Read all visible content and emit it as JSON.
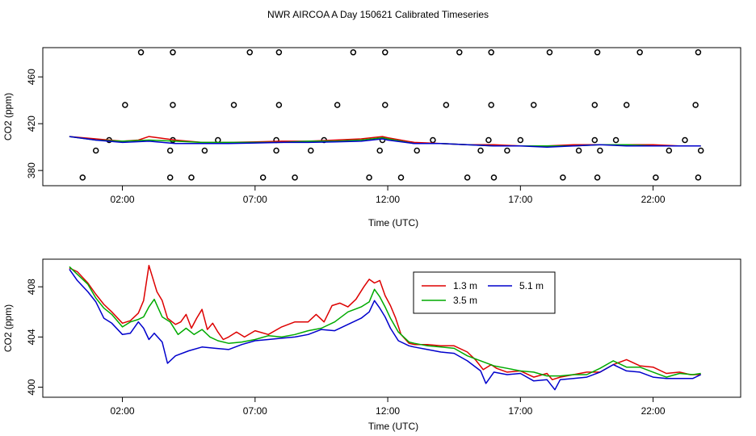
{
  "title": "NWR AIRCOA A  Day 150621  Calibrated Timeseries",
  "chart_data": [
    {
      "type": "scatter",
      "xlabel": "Time (UTC)",
      "ylabel": "CO2 (ppm)",
      "xlim": [
        -1.0,
        25.3
      ],
      "ylim": [
        367,
        485
      ],
      "x_ticks": [
        2,
        7,
        12,
        17,
        22
      ],
      "x_tick_labels": [
        "02:00",
        "07:00",
        "12:00",
        "17:00",
        "22:00"
      ],
      "y_ticks": [
        380,
        420,
        460
      ],
      "y_tick_labels": [
        "380",
        "420",
        "460"
      ],
      "lines": [
        {
          "name": "1.3 m",
          "color": "#dd0000",
          "x": [
            0,
            1,
            2,
            2.6,
            3,
            4,
            5,
            6,
            7,
            8,
            9,
            10,
            11,
            11.8,
            12,
            13,
            14,
            15,
            16,
            17,
            18,
            19,
            20,
            21,
            22,
            23,
            23.8
          ],
          "y": [
            409,
            407,
            405,
            406,
            409,
            406,
            404,
            404,
            404.5,
            405,
            405,
            406,
            407,
            409,
            408,
            404,
            403,
            402,
            402,
            401,
            401,
            402,
            402,
            402,
            402,
            401,
            401
          ]
        },
        {
          "name": "3.5 m",
          "color": "#00aa00",
          "x": [
            0,
            1,
            2,
            3,
            4,
            5,
            6,
            7,
            8,
            9,
            10,
            11,
            11.8,
            12,
            13,
            14,
            15,
            16,
            17,
            18,
            19,
            20,
            21,
            22,
            23,
            23.8
          ],
          "y": [
            409,
            406,
            405,
            406,
            405,
            404,
            404,
            404,
            404,
            405,
            405,
            406,
            408,
            407,
            403,
            403,
            402,
            401,
            401,
            401,
            401,
            402,
            402,
            401,
            401,
            401
          ]
        },
        {
          "name": "5.1 m",
          "color": "#0000cc",
          "x": [
            0,
            1,
            2,
            3,
            4,
            5,
            6,
            7,
            8,
            9,
            10,
            11,
            11.8,
            12,
            13,
            14,
            15,
            16,
            17,
            18,
            19,
            20,
            21,
            22,
            23,
            23.8
          ],
          "y": [
            409,
            406,
            404,
            405,
            403,
            403,
            403,
            403.5,
            404,
            404,
            404.5,
            405,
            407,
            406,
            403,
            403,
            402,
            401,
            401,
            400,
            401,
            402,
            401,
            401,
            401,
            401
          ]
        }
      ],
      "points": {
        "x": [
          0.5,
          1.0,
          1.5,
          2.1,
          2.7,
          3.8,
          3.8,
          3.9,
          3.9,
          3.9,
          4.6,
          5.1,
          5.6,
          6.2,
          6.8,
          7.3,
          7.8,
          7.8,
          7.9,
          7.9,
          8.5,
          9.1,
          9.6,
          10.1,
          10.7,
          11.3,
          11.7,
          11.8,
          11.9,
          11.9,
          12.5,
          13.1,
          13.7,
          14.2,
          14.7,
          15.0,
          15.5,
          15.8,
          15.9,
          15.9,
          16.0,
          16.5,
          17.0,
          17.5,
          18.1,
          18.6,
          19.2,
          19.8,
          19.8,
          19.9,
          19.9,
          20.0,
          20.6,
          21.0,
          21.5,
          22.1,
          22.6,
          23.2,
          23.6,
          23.7,
          23.7,
          23.8
        ]
      }
    },
    {
      "type": "line",
      "xlabel": "Time (UTC)",
      "ylabel": "CO2 (ppm)",
      "xlim": [
        -1.0,
        25.3
      ],
      "ylim": [
        399.2,
        410.2
      ],
      "x_ticks": [
        2,
        7,
        12,
        17,
        22
      ],
      "x_tick_labels": [
        "02:00",
        "07:00",
        "12:00",
        "17:00",
        "22:00"
      ],
      "y_ticks": [
        400,
        404,
        408
      ],
      "y_tick_labels": [
        "400",
        "404",
        "408"
      ],
      "legend": {
        "placement": "top-center",
        "entries": [
          "1.3 m",
          "5.1 m",
          "3.5 m"
        ]
      },
      "series": [
        {
          "name": "1.3 m",
          "color": "#dd0000",
          "x": [
            0,
            0.3,
            0.7,
            1.0,
            1.3,
            1.6,
            2.0,
            2.3,
            2.6,
            2.8,
            3.0,
            3.1,
            3.3,
            3.5,
            3.7,
            4.0,
            4.2,
            4.4,
            4.6,
            4.8,
            5.0,
            5.2,
            5.4,
            5.6,
            5.8,
            6.0,
            6.3,
            6.6,
            7.0,
            7.5,
            8.0,
            8.5,
            9.0,
            9.3,
            9.6,
            9.9,
            10.2,
            10.5,
            10.8,
            11.1,
            11.3,
            11.5,
            11.7,
            11.9,
            12.1,
            12.3,
            12.5,
            12.8,
            13.0,
            13.5,
            14.0,
            14.5,
            15.0,
            15.3,
            15.6,
            15.9,
            16.1,
            16.5,
            17.0,
            17.5,
            18.0,
            18.2,
            18.5,
            19.0,
            19.5,
            20.0,
            20.5,
            21.0,
            21.5,
            22.0,
            22.5,
            23.0,
            23.4,
            23.8
          ],
          "y": [
            409.5,
            409.2,
            408.3,
            407.4,
            406.6,
            406.0,
            405.1,
            405.3,
            405.9,
            406.9,
            409.7,
            409.0,
            407.6,
            406.9,
            405.5,
            405.0,
            405.2,
            405.8,
            404.7,
            405.5,
            406.2,
            404.6,
            405.1,
            404.4,
            403.8,
            404.0,
            404.4,
            404.0,
            404.5,
            404.2,
            404.8,
            405.2,
            405.2,
            405.8,
            405.2,
            406.5,
            406.7,
            406.4,
            407.0,
            408.0,
            408.6,
            408.3,
            408.5,
            407.3,
            406.5,
            405.5,
            404.2,
            403.5,
            403.4,
            403.4,
            403.3,
            403.3,
            402.8,
            402.2,
            401.4,
            401.8,
            401.5,
            401.2,
            401.3,
            400.8,
            401.1,
            400.6,
            400.8,
            401.0,
            401.2,
            401.2,
            401.8,
            402.2,
            401.7,
            401.6,
            401.1,
            401.2,
            401.0,
            401.0
          ]
        },
        {
          "name": "3.5 m",
          "color": "#00aa00",
          "x": [
            0,
            0.3,
            0.7,
            1.0,
            1.3,
            1.6,
            2.0,
            2.3,
            2.6,
            2.8,
            3.0,
            3.2,
            3.5,
            3.8,
            4.1,
            4.4,
            4.7,
            5.0,
            5.3,
            5.6,
            6.0,
            6.5,
            7.0,
            7.5,
            8.0,
            8.5,
            9.0,
            9.5,
            10.0,
            10.5,
            11.0,
            11.3,
            11.5,
            11.7,
            11.9,
            12.1,
            12.4,
            12.8,
            13.0,
            13.5,
            14.0,
            14.5,
            15.0,
            15.5,
            16.0,
            16.5,
            17.0,
            17.5,
            18.0,
            18.5,
            19.0,
            19.5,
            20.0,
            20.5,
            21.0,
            21.5,
            22.0,
            22.5,
            23.0,
            23.5,
            23.8
          ],
          "y": [
            409.6,
            409.0,
            408.2,
            407.1,
            406.3,
            405.8,
            404.8,
            405.2,
            405.4,
            405.6,
            406.4,
            407.0,
            405.6,
            405.2,
            404.2,
            404.7,
            404.2,
            404.6,
            404.0,
            403.7,
            403.5,
            403.6,
            403.8,
            404.1,
            404.0,
            404.2,
            404.5,
            404.7,
            405.2,
            406.0,
            406.4,
            406.8,
            407.8,
            407.2,
            406.4,
            405.5,
            404.4,
            403.6,
            403.5,
            403.3,
            403.2,
            403.1,
            402.5,
            402.1,
            401.7,
            401.5,
            401.3,
            401.2,
            400.9,
            400.9,
            401.0,
            401.0,
            401.5,
            402.1,
            401.6,
            401.6,
            401.2,
            400.8,
            401.1,
            401.0,
            401.1
          ]
        },
        {
          "name": "5.1 m",
          "color": "#0000cc",
          "x": [
            0,
            0.3,
            0.7,
            1.0,
            1.3,
            1.6,
            2.0,
            2.3,
            2.6,
            2.8,
            3.0,
            3.2,
            3.5,
            3.7,
            4.0,
            4.5,
            5.0,
            5.5,
            6.0,
            6.5,
            7.0,
            7.5,
            8.0,
            8.5,
            9.0,
            9.5,
            10.0,
            10.5,
            11.0,
            11.3,
            11.5,
            11.7,
            11.9,
            12.1,
            12.4,
            12.8,
            13.0,
            13.5,
            14.0,
            14.5,
            15.0,
            15.5,
            15.7,
            16.0,
            16.5,
            17.0,
            17.5,
            18.0,
            18.3,
            18.5,
            19.0,
            19.5,
            20.0,
            20.5,
            21.0,
            21.5,
            22.0,
            22.5,
            23.0,
            23.5,
            23.8
          ],
          "y": [
            409.4,
            408.5,
            407.6,
            406.8,
            405.5,
            405.1,
            404.2,
            404.3,
            405.2,
            404.7,
            403.8,
            404.3,
            403.6,
            401.9,
            402.5,
            402.9,
            403.2,
            403.1,
            403.0,
            403.4,
            403.7,
            403.8,
            403.9,
            404.0,
            404.2,
            404.6,
            404.5,
            405.0,
            405.5,
            406.0,
            406.9,
            406.3,
            405.6,
            404.7,
            403.7,
            403.3,
            403.2,
            403.0,
            402.8,
            402.7,
            402.1,
            401.3,
            400.3,
            401.2,
            401.0,
            401.1,
            400.5,
            400.6,
            399.8,
            400.6,
            400.7,
            400.8,
            401.2,
            401.8,
            401.3,
            401.2,
            400.8,
            400.7,
            400.7,
            400.7,
            401.0
          ]
        }
      ]
    }
  ]
}
